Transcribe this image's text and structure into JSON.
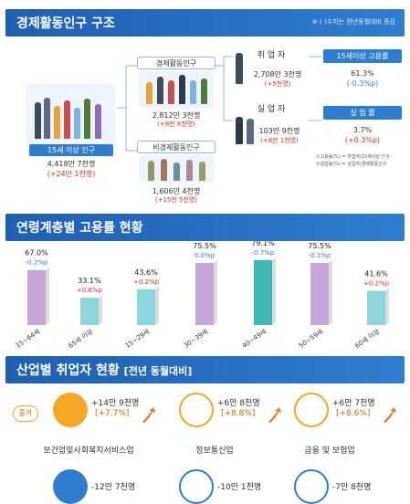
{
  "section1": {
    "title": "경제활동인구 구조",
    "note": "※ ( )수치는 전년동월대비 증감",
    "age15": {
      "label": "15세 이상 인구",
      "value": "4,418만 7천명",
      "change": "(+24만 1천명)"
    },
    "active": {
      "label": "경제활동인구",
      "value": "2,812만 3천명",
      "change": "(+8만 6천명)"
    },
    "inactive": {
      "label": "비경제활동인구",
      "value": "1,606만 4천명",
      "change": "(+15만 5천명)"
    },
    "employed": {
      "label": "취 업 자",
      "value": "2,708만 3천명",
      "change": "(+5천명)"
    },
    "unemployed": {
      "label": "실 업 자",
      "value": "103만 9천명",
      "change": "(+8만 1천명)"
    },
    "employment_rate": {
      "label": "15세이상 고용률",
      "value": "61.3%",
      "change": "(-0.3%p)"
    },
    "unemployment_rate": {
      "label": "실 업 률",
      "value": "3.7%",
      "change": "(+0.3%p)"
    },
    "footnote1": "①고용률(%) = 취업자/15세이상 인구",
    "footnote2": "②실업률(%) = 실업자/경제활동인구"
  },
  "section2": {
    "title": "연령계층별 고용률 현황"
  },
  "chart_data": {
    "type": "bar",
    "title": "연령계층별 고용률 현황",
    "categories": [
      "15~64세",
      "65세 이상",
      "15~29세",
      "30~39세",
      "40~49세",
      "50~59세",
      "60세 이상"
    ],
    "values": [
      67.0,
      33.1,
      43.6,
      75.5,
      79.1,
      75.5,
      41.6
    ],
    "value_labels": [
      "67.0%",
      "33.1%",
      "43.6%",
      "75.5%",
      "79.1%",
      "75.5%",
      "41.6%"
    ],
    "changes": [
      "-0.2%p",
      "+0.6%p",
      "+0.2%p",
      "0.0%p",
      "-0.7%p",
      "-0.1%p",
      "+0.2%p"
    ],
    "colors": [
      "#c7a6d9",
      "#8fd6dc",
      "#8fd6dc",
      "#c7a6d9",
      "#3fb8b4",
      "#c7a6d9",
      "#8fd6dc"
    ],
    "positive_color": "#d0312d",
    "negative_color": "#2f7dd0"
  },
  "section3": {
    "title": "산업별 취업자 현황",
    "subtitle": "[전년 동월대비]",
    "increase_label": "증가",
    "industries": [
      {
        "name": "보건업및사회복지서비스업",
        "value": "+14만 9천명",
        "pct": "[+7.7%]",
        "color": "#f5a623"
      },
      {
        "name": "정보통신업",
        "value": "+6만 8천명",
        "pct": "[+8.8%]",
        "color": "#f5a623"
      },
      {
        "name": "금융 및 보험업",
        "value": "+6만 7천명",
        "pct": "[+8.6%]",
        "color": "#f5a623"
      }
    ],
    "decreases": [
      {
        "value": "-12만 7천명"
      },
      {
        "value": "-10만 1천명"
      },
      {
        "value": "-7만 8천명"
      }
    ]
  }
}
